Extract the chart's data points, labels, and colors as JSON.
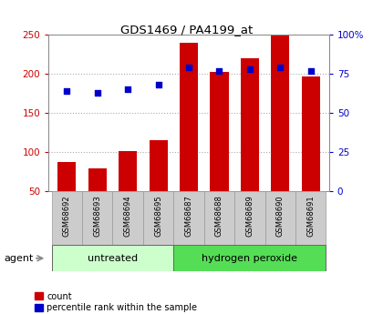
{
  "title": "GDS1469 / PA4199_at",
  "samples": [
    "GSM68692",
    "GSM68693",
    "GSM68694",
    "GSM68695",
    "GSM68687",
    "GSM68688",
    "GSM68689",
    "GSM68690",
    "GSM68691"
  ],
  "counts": [
    88,
    80,
    101,
    116,
    240,
    202,
    220,
    249,
    197
  ],
  "percentiles": [
    64,
    63,
    65,
    68,
    79,
    77,
    78,
    79,
    77
  ],
  "groups": [
    {
      "label": "untreated",
      "start": 0,
      "end": 4
    },
    {
      "label": "hydrogen peroxide",
      "start": 4,
      "end": 9
    }
  ],
  "bar_color": "#cc0000",
  "dot_color": "#0000cc",
  "left_axis_color": "#cc0000",
  "right_axis_color": "#0000cc",
  "ylim_left": [
    50,
    250
  ],
  "ylim_right": [
    0,
    100
  ],
  "yticks_left": [
    50,
    100,
    150,
    200,
    250
  ],
  "yticks_right": [
    0,
    25,
    50,
    75,
    100
  ],
  "grid_color": "#aaaaaa",
  "bg_color": "#ffffff",
  "plot_bg": "#ffffff",
  "group_bg_untreated": "#ccffcc",
  "group_bg_peroxide": "#55dd55",
  "sample_bg": "#cccccc",
  "agent_label": "agent",
  "legend_count": "count",
  "legend_percentile": "percentile rank within the sample"
}
